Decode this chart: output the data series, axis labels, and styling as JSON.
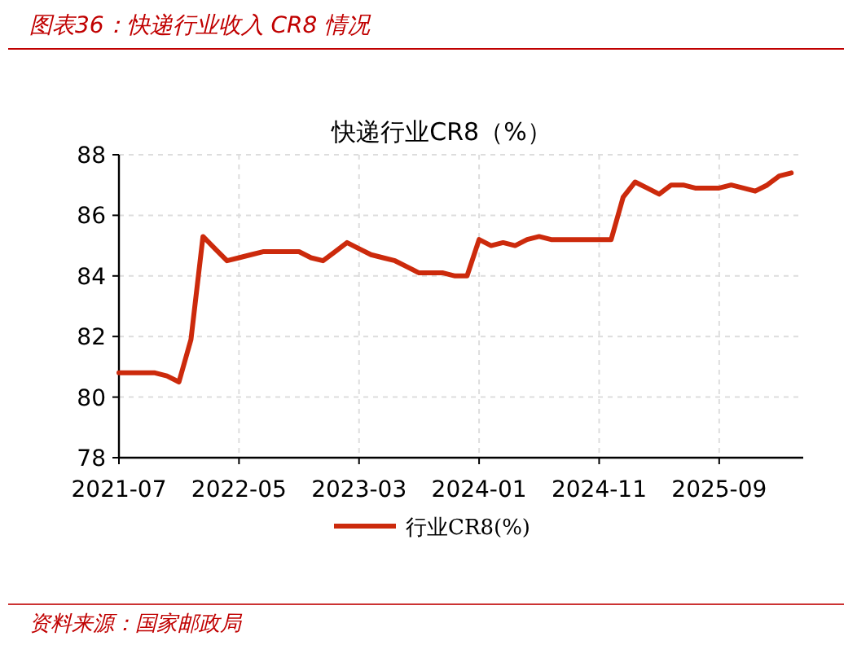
{
  "chart_data": {
    "type": "line",
    "title": "图表36：快递行业收入 CR8 情况",
    "subtitle": "快递行业CR8（%）",
    "annotations": [
      "资料来源：国家邮政局"
    ],
    "x": [
      "2021-07",
      "2021-08",
      "2021-09",
      "2021-10",
      "2021-11",
      "2021-12",
      "2022-01",
      "2022-02",
      "2022-03",
      "2022-04",
      "2022-05",
      "2022-06",
      "2022-07",
      "2022-08",
      "2022-09",
      "2022-10",
      "2022-11",
      "2022-12",
      "2023-01",
      "2023-02",
      "2023-03",
      "2023-04",
      "2023-05",
      "2023-06",
      "2023-07",
      "2023-08",
      "2023-09",
      "2023-10",
      "2023-11",
      "2023-12",
      "2024-01",
      "2024-02",
      "2024-03",
      "2024-04",
      "2024-05",
      "2024-06",
      "2024-07",
      "2024-08",
      "2024-09",
      "2024-10",
      "2024-11",
      "2024-12",
      "2025-01",
      "2025-02",
      "2025-03",
      "2025-04",
      "2025-05",
      "2025-06",
      "2025-07",
      "2025-08",
      "2025-09",
      "2025-10",
      "2025-11",
      "2025-12",
      "2026-01",
      "2026-02",
      "2026-03"
    ],
    "series": [
      {
        "name": "行业CR8(%)",
        "color": "#cc2a0c",
        "values": [
          80.8,
          80.8,
          80.8,
          80.8,
          80.7,
          80.5,
          81.9,
          85.3,
          84.9,
          84.5,
          84.6,
          84.7,
          84.8,
          84.8,
          84.8,
          84.8,
          84.6,
          84.5,
          84.8,
          85.1,
          84.9,
          84.7,
          84.6,
          84.5,
          84.3,
          84.1,
          84.1,
          84.1,
          84.0,
          84.0,
          85.2,
          85.0,
          85.1,
          85.0,
          85.2,
          85.3,
          85.2,
          85.2,
          85.2,
          85.2,
          85.2,
          85.2,
          86.6,
          87.1,
          86.9,
          86.7,
          87.0,
          87.0,
          86.9,
          86.9,
          86.9,
          87.0,
          86.9,
          86.8,
          87.0,
          87.3,
          87.4
        ]
      }
    ],
    "xlim": [
      "2021-07",
      "2026-04"
    ],
    "xticks": [
      "2021-07",
      "2022-05",
      "2023-03",
      "2024-01",
      "2024-11",
      "2025-09"
    ],
    "ylim": [
      78,
      88
    ],
    "yticks": [
      78,
      80,
      82,
      84,
      86,
      88
    ],
    "grid": true,
    "legend": "bottom",
    "marker": "none",
    "line_style": "solid"
  }
}
